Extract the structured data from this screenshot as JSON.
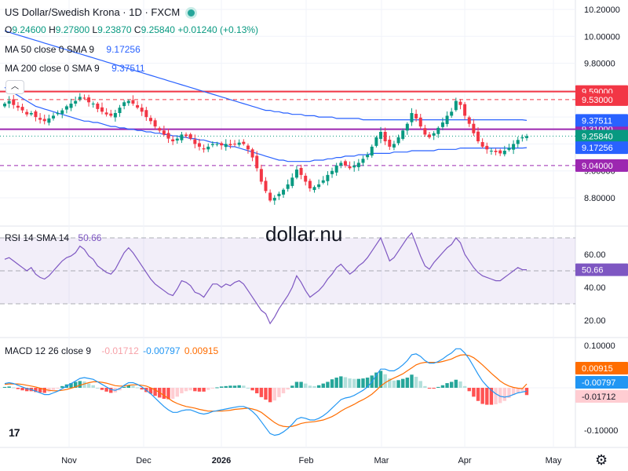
{
  "header": {
    "title": "US Dollar/Swedish Krona · 1D · FXCM",
    "ohlc": {
      "o_label": "O",
      "o": "9.24600",
      "h_label": "H",
      "h": "9.27800",
      "l_label": "L",
      "l": "9.23870",
      "c_label": "C",
      "c": "9.25840",
      "change": "+0.01240 (+0.13%)"
    },
    "ma50_label": "MA 50 close 0 SMA 9",
    "ma50_value": "9.17256",
    "ma200_label": "MA 200 close 0 SMA 9",
    "ma200_value": "9.37511",
    "rsi_label": "RSI 14 SMA 14",
    "rsi_value": "50.66",
    "macd_label": "MACD 12 26 close 9",
    "macd_hist": "-0.01712",
    "macd_line": "-0.00797",
    "macd_signal": "0.00915"
  },
  "watermark": "dollar.nu",
  "colors": {
    "up": "#089981",
    "down": "#f23645",
    "ma50": "#2962ff",
    "ma200": "#2962ff",
    "purple_line": "#9c27b0",
    "rsi": "#7e57c2",
    "macd": "#2196f3",
    "signal": "#ff6d00"
  },
  "chart_data": [
    {
      "type": "candlestick",
      "title": "US Dollar/Swedish Krona · 1D · FXCM",
      "x_ticks": [
        "Nov",
        "Dec",
        "2026",
        "Feb",
        "Mar",
        "Apr",
        "May"
      ],
      "y_ticks": [
        "10.20000",
        "10.00000",
        "9.80000",
        "9.60000",
        "9.40000",
        "9.20000",
        "9.00000",
        "8.80000"
      ],
      "ylim": [
        8.68,
        10.24
      ],
      "horizontal_levels": [
        {
          "value": 9.59,
          "label": "9.59000",
          "style": "solid",
          "color": "#f23645"
        },
        {
          "value": 9.53,
          "label": "9.53000",
          "style": "dashed",
          "color": "#f23645"
        },
        {
          "value": 9.31,
          "label": "9.31000",
          "style": "solid",
          "color": "#9c27b0"
        },
        {
          "value": 9.04,
          "label": "9.04000",
          "style": "dashed",
          "color": "#9c27b0"
        }
      ],
      "price_labels": [
        {
          "value": 9.37511,
          "label": "9.37511",
          "color": "#2962ff"
        },
        {
          "value": 9.2584,
          "label": "9.25840",
          "color": "#089981"
        },
        {
          "value": 9.17256,
          "label": "9.17256",
          "color": "#2962ff"
        }
      ],
      "closes": [
        9.5,
        9.52,
        9.49,
        9.47,
        9.45,
        9.42,
        9.43,
        9.4,
        9.38,
        9.37,
        9.39,
        9.41,
        9.43,
        9.45,
        9.48,
        9.5,
        9.52,
        9.55,
        9.54,
        9.51,
        9.5,
        9.46,
        9.44,
        9.42,
        9.41,
        9.43,
        9.47,
        9.51,
        9.52,
        9.5,
        9.47,
        9.44,
        9.4,
        9.37,
        9.33,
        9.3,
        9.27,
        9.24,
        9.22,
        9.24,
        9.27,
        9.26,
        9.24,
        9.2,
        9.18,
        9.16,
        9.18,
        9.2,
        9.2,
        9.19,
        9.2,
        9.19,
        9.2,
        9.21,
        9.2,
        9.16,
        9.1,
        9.02,
        8.92,
        8.85,
        8.78,
        8.8,
        8.83,
        8.86,
        8.9,
        8.95,
        9.01,
        8.97,
        8.92,
        8.87,
        8.88,
        8.9,
        8.93,
        8.97,
        9.0,
        9.04,
        9.06,
        9.04,
        9.02,
        9.04,
        9.06,
        9.09,
        9.12,
        9.18,
        9.25,
        9.29,
        9.22,
        9.18,
        9.2,
        9.25,
        9.3,
        9.35,
        9.43,
        9.39,
        9.33,
        9.27,
        9.25,
        9.28,
        9.32,
        9.36,
        9.41,
        9.44,
        9.52,
        9.49,
        9.41,
        9.35,
        9.28,
        9.22,
        9.18,
        9.16,
        9.15,
        9.14,
        9.13,
        9.15,
        9.17,
        9.2,
        9.23,
        9.25,
        9.2584
      ],
      "ma50": [
        9.62,
        9.6,
        9.58,
        9.56,
        9.54,
        9.52,
        9.5,
        9.48,
        9.47,
        9.46,
        9.45,
        9.44,
        9.43,
        9.42,
        9.41,
        9.4,
        9.39,
        9.38,
        9.37,
        9.37,
        9.36,
        9.36,
        9.35,
        9.34,
        9.33,
        9.33,
        9.32,
        9.32,
        9.31,
        9.31,
        9.3,
        9.3,
        9.29,
        9.29,
        9.28,
        9.28,
        9.27,
        9.27,
        9.26,
        9.26,
        9.25,
        9.25,
        9.24,
        9.24,
        9.23,
        9.23,
        9.22,
        9.21,
        9.21,
        9.2,
        9.19,
        9.18,
        9.18,
        9.17,
        9.16,
        9.15,
        9.14,
        9.13,
        9.12,
        9.11,
        9.1,
        9.09,
        9.08,
        9.08,
        9.07,
        9.07,
        9.07,
        9.07,
        9.07,
        9.07,
        9.08,
        9.08,
        9.08,
        9.09,
        9.09,
        9.1,
        9.1,
        9.11,
        9.11,
        9.11,
        9.12,
        9.12,
        9.12,
        9.13,
        9.13,
        9.13,
        9.13,
        9.13,
        9.14,
        9.14,
        9.14,
        9.14,
        9.15,
        9.15,
        9.15,
        9.15,
        9.15,
        9.15,
        9.16,
        9.16,
        9.16,
        9.16,
        9.16,
        9.17,
        9.17,
        9.17,
        9.17,
        9.17,
        9.17,
        9.17,
        9.17,
        9.17,
        9.17,
        9.17,
        9.17,
        9.17,
        9.17,
        9.17,
        9.17256
      ],
      "ma200": [
        10.04,
        10.03,
        10.02,
        10.01,
        10.0,
        9.99,
        9.98,
        9.97,
        9.96,
        9.95,
        9.94,
        9.93,
        9.92,
        9.91,
        9.9,
        9.89,
        9.88,
        9.87,
        9.86,
        9.85,
        9.84,
        9.83,
        9.82,
        9.81,
        9.8,
        9.79,
        9.78,
        9.77,
        9.76,
        9.75,
        9.74,
        9.73,
        9.72,
        9.71,
        9.7,
        9.69,
        9.68,
        9.67,
        9.66,
        9.65,
        9.64,
        9.63,
        9.62,
        9.61,
        9.6,
        9.59,
        9.58,
        9.57,
        9.56,
        9.55,
        9.54,
        9.53,
        9.52,
        9.51,
        9.5,
        9.49,
        9.48,
        9.47,
        9.46,
        9.45,
        9.45,
        9.44,
        9.44,
        9.43,
        9.43,
        9.42,
        9.42,
        9.42,
        9.41,
        9.41,
        9.41,
        9.4,
        9.4,
        9.4,
        9.4,
        9.39,
        9.39,
        9.39,
        9.39,
        9.39,
        9.39,
        9.38,
        9.38,
        9.38,
        9.38,
        9.38,
        9.38,
        9.38,
        9.38,
        9.38,
        9.38,
        9.38,
        9.38,
        9.38,
        9.38,
        9.38,
        9.38,
        9.38,
        9.38,
        9.38,
        9.38,
        9.38,
        9.38,
        9.38,
        9.38,
        9.38,
        9.38,
        9.38,
        9.38,
        9.38,
        9.38,
        9.38,
        9.38,
        9.38,
        9.38,
        9.38,
        9.38,
        9.38,
        9.37511
      ]
    },
    {
      "type": "line",
      "title": "RSI 14 SMA 14",
      "y_ticks": [
        "60.00",
        "40.00",
        "20.00"
      ],
      "ylim": [
        14,
        76
      ],
      "band": [
        30,
        70
      ],
      "current": {
        "value": 50.66,
        "label": "50.66"
      },
      "values": [
        57,
        58,
        56,
        54,
        52,
        50,
        52,
        48,
        46,
        45,
        47,
        50,
        53,
        56,
        58,
        59,
        61,
        65,
        63,
        59,
        57,
        53,
        51,
        49,
        48,
        51,
        56,
        61,
        64,
        61,
        57,
        53,
        49,
        45,
        42,
        40,
        38,
        36,
        35,
        39,
        44,
        43,
        41,
        37,
        36,
        34,
        38,
        42,
        42,
        40,
        42,
        41,
        43,
        44,
        42,
        38,
        34,
        30,
        26,
        24,
        18,
        22,
        27,
        31,
        35,
        40,
        47,
        43,
        38,
        34,
        36,
        38,
        41,
        45,
        48,
        52,
        54,
        51,
        48,
        50,
        53,
        55,
        58,
        62,
        66,
        70,
        63,
        56,
        58,
        62,
        66,
        70,
        73,
        66,
        59,
        53,
        51,
        55,
        58,
        61,
        64,
        66,
        70,
        67,
        60,
        56,
        52,
        49,
        47,
        46,
        45,
        44,
        44,
        46,
        48,
        50,
        52,
        50.66,
        50.66
      ]
    },
    {
      "type": "bar",
      "title": "MACD 12 26 close 9",
      "y_ticks": [
        "0.10000",
        "-0.10000"
      ],
      "ylim": [
        -0.12,
        0.12
      ],
      "current": [
        {
          "label": "0.00915",
          "value": 0.00915,
          "color": "#ff6d00"
        },
        {
          "label": "-0.00797",
          "value": -0.00797,
          "color": "#2196f3"
        },
        {
          "label": "-0.01712",
          "value": -0.01712,
          "color": "#f23645"
        }
      ],
      "macd": [
        0.01,
        0.012,
        0.01,
        0.006,
        0.002,
        -0.002,
        -0.004,
        -0.008,
        -0.012,
        -0.016,
        -0.016,
        -0.012,
        -0.008,
        -0.002,
        0.004,
        0.01,
        0.016,
        0.022,
        0.024,
        0.022,
        0.02,
        0.014,
        0.008,
        0.002,
        -0.004,
        -0.006,
        -0.002,
        0.006,
        0.012,
        0.012,
        0.008,
        0.002,
        -0.006,
        -0.014,
        -0.024,
        -0.034,
        -0.044,
        -0.052,
        -0.058,
        -0.058,
        -0.054,
        -0.052,
        -0.052,
        -0.056,
        -0.06,
        -0.062,
        -0.06,
        -0.056,
        -0.054,
        -0.052,
        -0.05,
        -0.048,
        -0.046,
        -0.044,
        -0.044,
        -0.048,
        -0.056,
        -0.066,
        -0.08,
        -0.094,
        -0.108,
        -0.112,
        -0.11,
        -0.104,
        -0.096,
        -0.086,
        -0.074,
        -0.07,
        -0.072,
        -0.076,
        -0.076,
        -0.072,
        -0.066,
        -0.058,
        -0.048,
        -0.038,
        -0.028,
        -0.024,
        -0.022,
        -0.018,
        -0.012,
        -0.006,
        0.002,
        0.014,
        0.03,
        0.044,
        0.044,
        0.04,
        0.04,
        0.046,
        0.054,
        0.064,
        0.078,
        0.08,
        0.074,
        0.064,
        0.058,
        0.058,
        0.062,
        0.068,
        0.076,
        0.082,
        0.092,
        0.092,
        0.082,
        0.068,
        0.05,
        0.032,
        0.016,
        0.004,
        -0.006,
        -0.014,
        -0.02,
        -0.022,
        -0.02,
        -0.016,
        -0.012,
        -0.01,
        -0.00797
      ],
      "signal": [
        0.008,
        0.009,
        0.009,
        0.009,
        0.008,
        0.006,
        0.004,
        0.002,
        -0.001,
        -0.004,
        -0.006,
        -0.007,
        -0.007,
        -0.006,
        -0.004,
        -0.001,
        0.002,
        0.006,
        0.009,
        0.012,
        0.014,
        0.014,
        0.013,
        0.011,
        0.008,
        0.005,
        0.004,
        0.004,
        0.006,
        0.007,
        0.007,
        0.006,
        0.004,
        0.0,
        -0.005,
        -0.011,
        -0.018,
        -0.025,
        -0.032,
        -0.037,
        -0.041,
        -0.044,
        -0.046,
        -0.048,
        -0.051,
        -0.053,
        -0.055,
        -0.055,
        -0.055,
        -0.055,
        -0.054,
        -0.053,
        -0.051,
        -0.05,
        -0.049,
        -0.048,
        -0.05,
        -0.053,
        -0.058,
        -0.066,
        -0.074,
        -0.082,
        -0.088,
        -0.091,
        -0.092,
        -0.091,
        -0.088,
        -0.084,
        -0.082,
        -0.081,
        -0.08,
        -0.078,
        -0.076,
        -0.072,
        -0.068,
        -0.062,
        -0.055,
        -0.049,
        -0.044,
        -0.039,
        -0.033,
        -0.028,
        -0.022,
        -0.015,
        -0.006,
        0.004,
        0.012,
        0.018,
        0.023,
        0.028,
        0.033,
        0.04,
        0.047,
        0.054,
        0.058,
        0.06,
        0.06,
        0.06,
        0.06,
        0.062,
        0.065,
        0.068,
        0.073,
        0.077,
        0.078,
        0.076,
        0.071,
        0.063,
        0.054,
        0.044,
        0.034,
        0.025,
        0.016,
        0.009,
        0.004,
        0.001,
        -0.001,
        -0.002,
        0.00915
      ]
    }
  ]
}
